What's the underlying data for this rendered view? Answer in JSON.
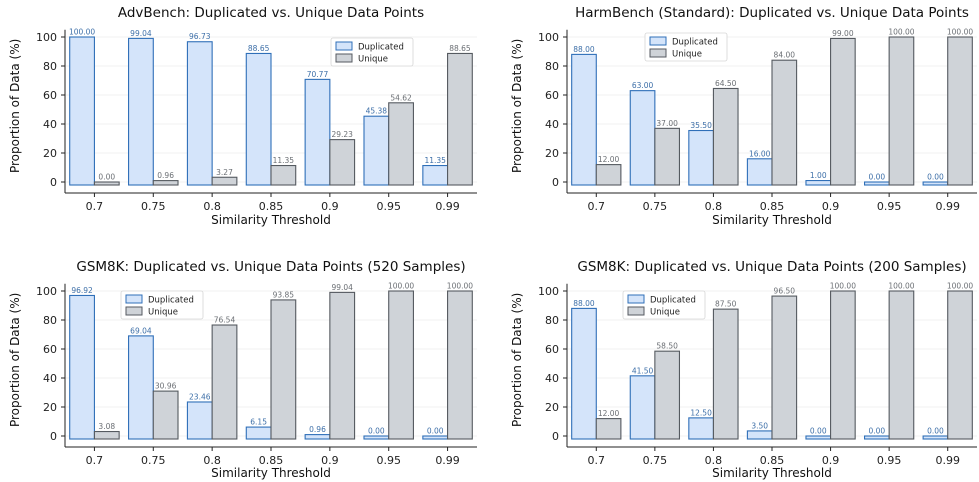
{
  "colors": {
    "duplicated_fill": "#d4e4fa",
    "duplicated_stroke": "#2f6fb8",
    "duplicated_label": "#3d6fa8",
    "unique_fill": "#cfd3d8",
    "unique_stroke": "#555a60",
    "unique_label": "#6b6f74",
    "grid": "#ececec",
    "axis": "#222222"
  },
  "chart_data": [
    {
      "type": "bar",
      "title": "AdvBench: Duplicated vs. Unique Data Points",
      "xlabel": "Similarity Threshold",
      "ylabel": "Proportion of Data (%)",
      "categories": [
        "0.7",
        "0.75",
        "0.8",
        "0.85",
        "0.9",
        "0.95",
        "0.99"
      ],
      "yticks": [
        "0",
        "20",
        "40",
        "60",
        "80",
        "100"
      ],
      "ylim": [
        0,
        105
      ],
      "grid": true,
      "legend": "top-center",
      "series": [
        {
          "name": "Duplicated",
          "values": [
            100.0,
            99.04,
            96.73,
            88.65,
            70.77,
            45.38,
            11.35
          ],
          "labels": [
            "100.00",
            "99.04",
            "96.73",
            "88.65",
            "70.77",
            "45.38",
            "11.35"
          ]
        },
        {
          "name": "Unique",
          "values": [
            0.0,
            0.96,
            3.27,
            11.35,
            29.23,
            54.62,
            88.65
          ],
          "labels": [
            "0.00",
            "0.96",
            "3.27",
            "11.35",
            "29.23",
            "54.62",
            "88.65"
          ]
        }
      ]
    },
    {
      "type": "bar",
      "title": "HarmBench (Standard): Duplicated vs. Unique Data Points",
      "xlabel": "Similarity Threshold",
      "ylabel": "Proportion of Data (%)",
      "categories": [
        "0.7",
        "0.75",
        "0.8",
        "0.85",
        "0.9",
        "0.95",
        "0.99"
      ],
      "yticks": [
        "0",
        "20",
        "40",
        "60",
        "80",
        "100"
      ],
      "ylim": [
        0,
        105
      ],
      "grid": true,
      "legend": "top-left",
      "series": [
        {
          "name": "Duplicated",
          "values": [
            88.0,
            63.0,
            35.5,
            16.0,
            1.0,
            0.0,
            0.0
          ],
          "labels": [
            "88.00",
            "63.00",
            "35.50",
            "16.00",
            "1.00",
            "0.00",
            "0.00"
          ]
        },
        {
          "name": "Unique",
          "values": [
            12.0,
            37.0,
            64.5,
            84.0,
            99.0,
            100.0,
            100.0
          ],
          "labels": [
            "12.00",
            "37.00",
            "64.50",
            "84.00",
            "99.00",
            "100.00",
            "100.00"
          ]
        }
      ]
    },
    {
      "type": "bar",
      "title": "GSM8K: Duplicated vs. Unique Data Points (520 Samples)",
      "xlabel": "Similarity Threshold",
      "ylabel": "Proportion of Data (%)",
      "categories": [
        "0.7",
        "0.75",
        "0.8",
        "0.85",
        "0.9",
        "0.95",
        "0.99"
      ],
      "yticks": [
        "0",
        "20",
        "40",
        "60",
        "80",
        "100"
      ],
      "ylim": [
        0,
        105
      ],
      "grid": true,
      "legend": "top-left",
      "series": [
        {
          "name": "Duplicated",
          "values": [
            96.92,
            69.04,
            23.46,
            6.15,
            0.96,
            0.0,
            0.0
          ],
          "labels": [
            "96.92",
            "69.04",
            "23.46",
            "6.15",
            "0.96",
            "0.00",
            "0.00"
          ]
        },
        {
          "name": "Unique",
          "values": [
            3.08,
            30.96,
            76.54,
            93.85,
            99.04,
            100.0,
            100.0
          ],
          "labels": [
            "3.08",
            "30.96",
            "76.54",
            "93.85",
            "99.04",
            "100.00",
            "100.00"
          ]
        }
      ]
    },
    {
      "type": "bar",
      "title": "GSM8K: Duplicated vs. Unique Data Points (200 Samples)",
      "xlabel": "Similarity Threshold",
      "ylabel": "Proportion of Data (%)",
      "categories": [
        "0.7",
        "0.75",
        "0.8",
        "0.85",
        "0.9",
        "0.95",
        "0.99"
      ],
      "yticks": [
        "0",
        "20",
        "40",
        "60",
        "80",
        "100"
      ],
      "ylim": [
        0,
        105
      ],
      "grid": true,
      "legend": "top-left",
      "series": [
        {
          "name": "Duplicated",
          "values": [
            88.0,
            41.5,
            12.5,
            3.5,
            0.0,
            0.0,
            0.0
          ],
          "labels": [
            "88.00",
            "41.50",
            "12.50",
            "3.50",
            "0.00",
            "0.00",
            "0.00"
          ]
        },
        {
          "name": "Unique",
          "values": [
            12.0,
            58.5,
            87.5,
            96.5,
            100.0,
            100.0,
            100.0
          ],
          "labels": [
            "12.00",
            "58.50",
            "87.50",
            "96.50",
            "100.00",
            "100.00",
            "100.00"
          ]
        }
      ]
    }
  ]
}
